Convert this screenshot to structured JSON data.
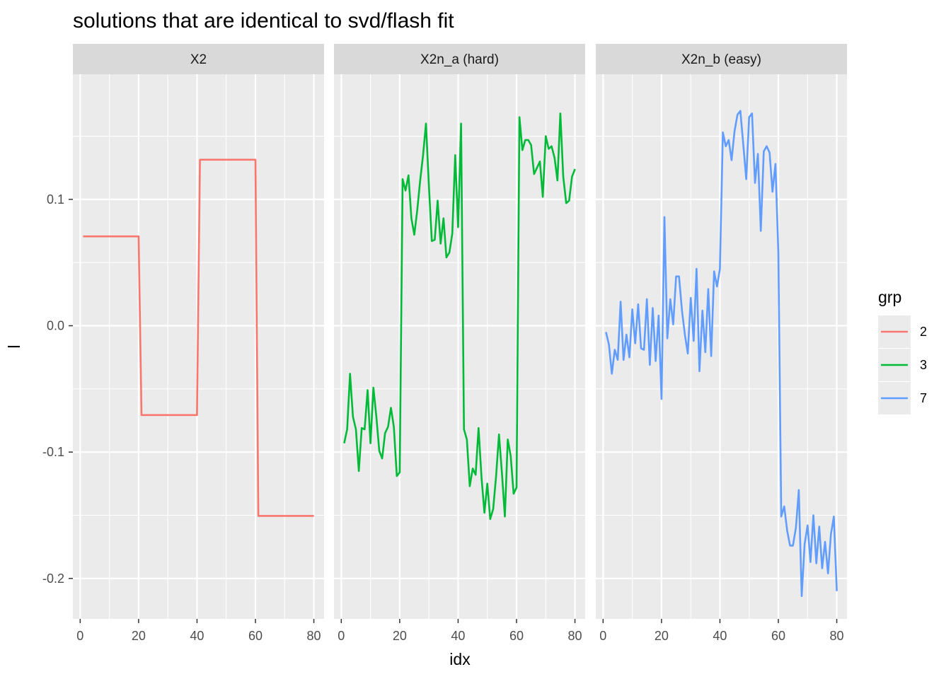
{
  "chart_data": {
    "type": "line",
    "title": "solutions that are identical to svd/flash fit",
    "xlabel": "idx",
    "ylabel": "l",
    "xlim": [
      -2.5,
      83.5
    ],
    "ylim": [
      -0.232,
      0.199
    ],
    "x_ticks": [
      0,
      20,
      40,
      60,
      80
    ],
    "x_tick_labels": [
      "0",
      "20",
      "40",
      "60",
      "80"
    ],
    "y_ticks": [
      -0.2,
      -0.1,
      0.0,
      0.1
    ],
    "y_tick_labels": [
      "-0.2",
      "-0.1",
      "0.0",
      "0.1"
    ],
    "grid": true,
    "legend": {
      "title": "grp",
      "position": "right",
      "entries": [
        {
          "label": "2",
          "color": "#F8766D"
        },
        {
          "label": "3",
          "color": "#00BA38"
        },
        {
          "label": "7",
          "color": "#619CFF"
        }
      ]
    },
    "panels": [
      {
        "strip": "X2",
        "grp": "2",
        "color": "#F8766D",
        "x": [
          1,
          2,
          3,
          4,
          5,
          6,
          7,
          8,
          9,
          10,
          11,
          12,
          13,
          14,
          15,
          16,
          17,
          18,
          19,
          20,
          21,
          22,
          23,
          24,
          25,
          26,
          27,
          28,
          29,
          30,
          31,
          32,
          33,
          34,
          35,
          36,
          37,
          38,
          39,
          40,
          41,
          42,
          43,
          44,
          45,
          46,
          47,
          48,
          49,
          50,
          51,
          52,
          53,
          54,
          55,
          56,
          57,
          58,
          59,
          60,
          61,
          62,
          63,
          64,
          65,
          66,
          67,
          68,
          69,
          70,
          71,
          72,
          73,
          74,
          75,
          76,
          77,
          78,
          79,
          80
        ],
        "y": [
          0.0707,
          0.0707,
          0.0707,
          0.0707,
          0.0707,
          0.0707,
          0.0707,
          0.0707,
          0.0707,
          0.0707,
          0.0707,
          0.0707,
          0.0707,
          0.0707,
          0.0707,
          0.0707,
          0.0707,
          0.0707,
          0.0707,
          0.0707,
          -0.0707,
          -0.0707,
          -0.0707,
          -0.0707,
          -0.0707,
          -0.0707,
          -0.0707,
          -0.0707,
          -0.0707,
          -0.0707,
          -0.0707,
          -0.0707,
          -0.0707,
          -0.0707,
          -0.0707,
          -0.0707,
          -0.0707,
          -0.0707,
          -0.0707,
          -0.0707,
          0.1314,
          0.1314,
          0.1314,
          0.1314,
          0.1314,
          0.1314,
          0.1314,
          0.1314,
          0.1314,
          0.1314,
          0.1314,
          0.1314,
          0.1314,
          0.1314,
          0.1314,
          0.1314,
          0.1314,
          0.1314,
          0.1314,
          0.1314,
          -0.1505,
          -0.1505,
          -0.1505,
          -0.1505,
          -0.1505,
          -0.1505,
          -0.1505,
          -0.1505,
          -0.1505,
          -0.1505,
          -0.1505,
          -0.1505,
          -0.1505,
          -0.1505,
          -0.1505,
          -0.1505,
          -0.1505,
          -0.1505,
          -0.1505,
          -0.1505
        ]
      },
      {
        "strip": "X2n_a (hard)",
        "grp": "3",
        "color": "#00BA38",
        "x": [
          1,
          2,
          3,
          4,
          5,
          6,
          7,
          8,
          9,
          10,
          11,
          12,
          13,
          14,
          15,
          16,
          17,
          18,
          19,
          20,
          21,
          22,
          23,
          24,
          25,
          26,
          27,
          28,
          29,
          30,
          31,
          32,
          33,
          34,
          35,
          36,
          37,
          38,
          39,
          40,
          41,
          42,
          43,
          44,
          45,
          46,
          47,
          48,
          49,
          50,
          51,
          52,
          53,
          54,
          55,
          56,
          57,
          58,
          59,
          60,
          61,
          62,
          63,
          64,
          65,
          66,
          67,
          68,
          69,
          70,
          71,
          72,
          73,
          74,
          75,
          76,
          77,
          78,
          79,
          80
        ],
        "y": [
          -0.093,
          -0.082,
          -0.038,
          -0.072,
          -0.082,
          -0.115,
          -0.081,
          -0.082,
          -0.051,
          -0.093,
          -0.049,
          -0.072,
          -0.099,
          -0.105,
          -0.085,
          -0.08,
          -0.065,
          -0.08,
          -0.119,
          -0.116,
          0.116,
          0.107,
          0.119,
          0.085,
          0.072,
          0.091,
          0.115,
          0.135,
          0.16,
          0.11,
          0.067,
          0.068,
          0.099,
          0.065,
          0.085,
          0.054,
          0.058,
          0.073,
          0.135,
          0.078,
          0.16,
          -0.082,
          -0.09,
          -0.127,
          -0.113,
          -0.118,
          -0.081,
          -0.12,
          -0.148,
          -0.125,
          -0.153,
          -0.145,
          -0.119,
          -0.086,
          -0.117,
          -0.151,
          -0.09,
          -0.103,
          -0.133,
          -0.128,
          0.165,
          0.139,
          0.147,
          0.147,
          0.143,
          0.12,
          0.125,
          0.13,
          0.102,
          0.15,
          0.14,
          0.142,
          0.133,
          0.115,
          0.168,
          0.118,
          0.097,
          0.099,
          0.118,
          0.124
        ]
      },
      {
        "strip": "X2n_b (easy)",
        "grp": "7",
        "color": "#619CFF",
        "x": [
          1,
          2,
          3,
          4,
          5,
          6,
          7,
          8,
          9,
          10,
          11,
          12,
          13,
          14,
          15,
          16,
          17,
          18,
          19,
          20,
          21,
          22,
          23,
          24,
          25,
          26,
          27,
          28,
          29,
          30,
          31,
          32,
          33,
          34,
          35,
          36,
          37,
          38,
          39,
          40,
          41,
          42,
          43,
          44,
          45,
          46,
          47,
          48,
          49,
          50,
          51,
          52,
          53,
          54,
          55,
          56,
          57,
          58,
          59,
          60,
          61,
          62,
          63,
          64,
          65,
          66,
          67,
          68,
          69,
          70,
          71,
          72,
          73,
          74,
          75,
          76,
          77,
          78,
          79,
          80
        ],
        "y": [
          -0.005,
          -0.015,
          -0.038,
          -0.019,
          -0.027,
          0.019,
          -0.027,
          -0.007,
          -0.025,
          0.013,
          -0.014,
          0.017,
          -0.018,
          -0.019,
          0.021,
          -0.031,
          0.014,
          -0.028,
          0.008,
          -0.058,
          0.086,
          -0.01,
          0.021,
          0.001,
          0.039,
          0.039,
          0.012,
          -0.007,
          -0.022,
          0.022,
          -0.012,
          0.045,
          -0.036,
          0.012,
          -0.021,
          0.029,
          -0.024,
          0.043,
          0.031,
          0.045,
          0.153,
          0.142,
          0.147,
          0.131,
          0.154,
          0.167,
          0.17,
          0.143,
          0.116,
          0.165,
          0.168,
          0.113,
          0.136,
          0.075,
          0.138,
          0.142,
          0.137,
          0.106,
          0.128,
          0.058,
          -0.151,
          -0.143,
          -0.162,
          -0.174,
          -0.174,
          -0.16,
          -0.13,
          -0.214,
          -0.173,
          -0.158,
          -0.187,
          -0.15,
          -0.188,
          -0.159,
          -0.192,
          -0.171,
          -0.196,
          -0.165,
          -0.151,
          -0.21
        ]
      }
    ]
  }
}
